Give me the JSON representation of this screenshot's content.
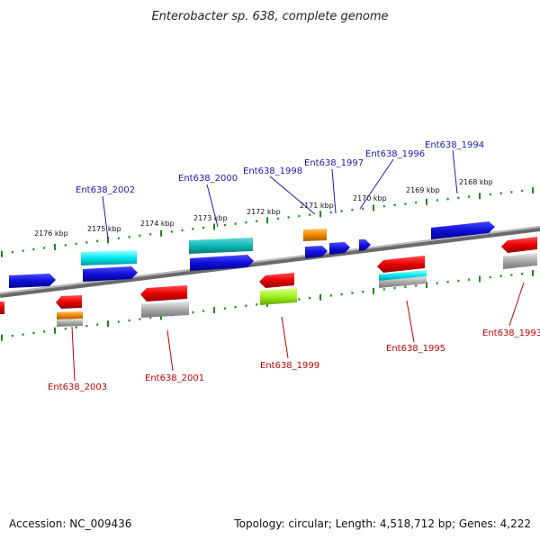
{
  "title": "Enterobacter sp. 638, complete genome",
  "footer": {
    "accession": "Accession: NC_009436",
    "topology": "Topology: circular; Length: 4,518,712 bp; Genes: 4,222"
  },
  "scale_labels": [
    "2176 kbp",
    "2175 kbp",
    "2174 kbp",
    "2173 kbp",
    "2172 kbp",
    "2171 kbp",
    "2170 kbp",
    "2169 kbp",
    "2168 kbp"
  ],
  "genes_top": [
    "Ent638_2002",
    "Ent638_2000",
    "Ent638_1998",
    "Ent638_1997",
    "Ent638_1996",
    "Ent638_1994"
  ],
  "genes_bottom": [
    "Ent638_2003",
    "Ent638_2001",
    "Ent638_1999",
    "Ent638_1995",
    "Ent638_1993"
  ],
  "colors": {
    "forward": "#1010d8",
    "reverse": "#e80000",
    "cyan": "#00e8f0",
    "teal": "#10b8b8",
    "orange": "#f08800",
    "lime": "#a0f020",
    "gray": "#a8a8a8",
    "backbone": "#808080",
    "tick": "#1a8a1a",
    "label_blue": "#1a1ab4",
    "label_red": "#c40000"
  }
}
